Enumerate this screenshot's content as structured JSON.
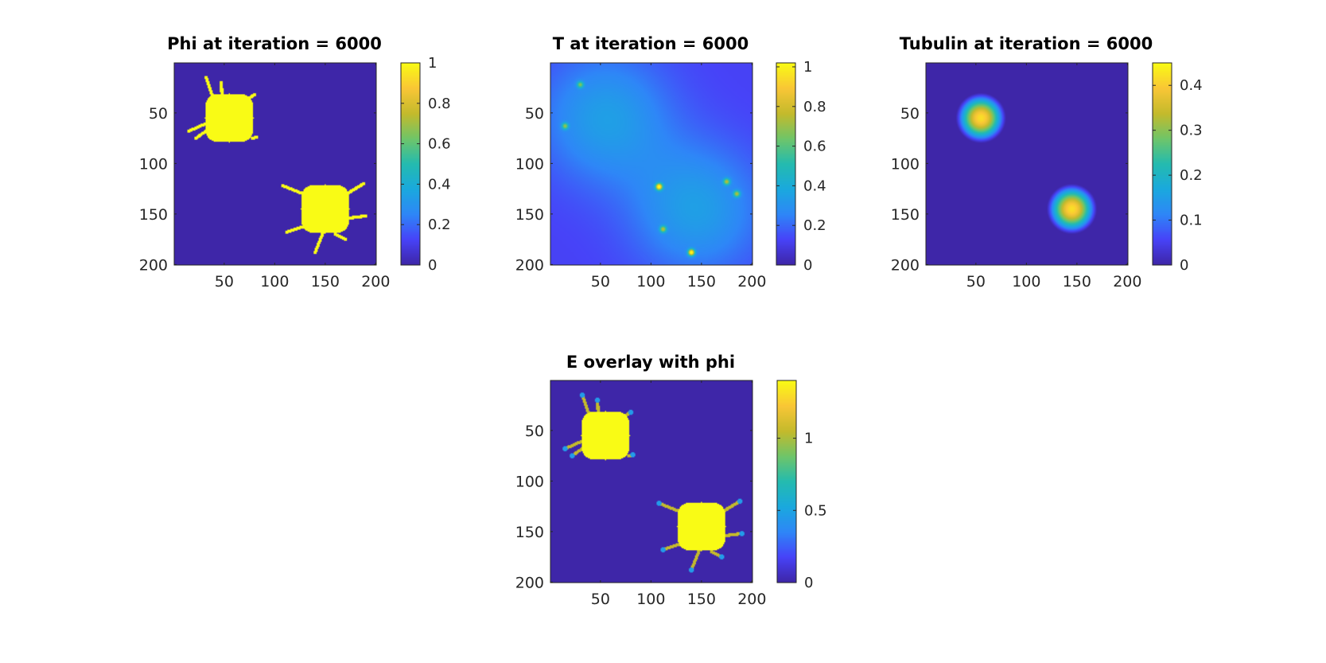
{
  "chart_data": [
    {
      "type": "heatmap",
      "title": "Phi at iteration = 6000",
      "xlim": [
        1,
        200
      ],
      "ylim": [
        1,
        200
      ],
      "y_reversed": true,
      "xticks": [
        50,
        100,
        150,
        200
      ],
      "yticks": [
        50,
        100,
        150,
        200
      ],
      "clim": [
        0,
        1
      ],
      "cbar_ticks": [
        0,
        0.2,
        0.4,
        0.6,
        0.8,
        1
      ],
      "cbar_tick_labels": [
        "0",
        "0.2",
        "0.4",
        "0.6",
        "0.8",
        "1"
      ],
      "field": {
        "background": 0,
        "blobs": [
          {
            "cx": 55,
            "cy": 55,
            "r": 24,
            "value": 1
          },
          {
            "cx": 150,
            "cy": 145,
            "r": 24,
            "value": 1
          }
        ],
        "filaments": [
          {
            "from": [
              40,
              38
            ],
            "to": [
              32,
              15
            ],
            "value": 1
          },
          {
            "from": [
              48,
              35
            ],
            "to": [
              47,
              20
            ],
            "value": 1
          },
          {
            "from": [
              70,
              38
            ],
            "to": [
              80,
              32
            ],
            "value": 1
          },
          {
            "from": [
              33,
              60
            ],
            "to": [
              15,
              68
            ],
            "value": 1
          },
          {
            "from": [
              36,
              65
            ],
            "to": [
              22,
              75
            ],
            "value": 1
          },
          {
            "from": [
              78,
              75
            ],
            "to": [
              82,
              74
            ],
            "value": 1
          },
          {
            "from": [
              128,
              130
            ],
            "to": [
              108,
              122
            ],
            "value": 1
          },
          {
            "from": [
              135,
              160
            ],
            "to": [
              112,
              168
            ],
            "value": 1
          },
          {
            "from": [
              148,
              168
            ],
            "to": [
              140,
              188
            ],
            "value": 1
          },
          {
            "from": [
              168,
              132
            ],
            "to": [
              188,
              120
            ],
            "value": 1
          },
          {
            "from": [
              165,
              155
            ],
            "to": [
              190,
              152
            ],
            "value": 1
          },
          {
            "from": [
              160,
              170
            ],
            "to": [
              170,
              175
            ],
            "value": 1
          }
        ]
      }
    },
    {
      "type": "heatmap",
      "title": "T at iteration = 6000",
      "xlim": [
        1,
        200
      ],
      "ylim": [
        1,
        200
      ],
      "y_reversed": true,
      "xticks": [
        50,
        100,
        150,
        200
      ],
      "yticks": [
        50,
        100,
        150,
        200
      ],
      "clim": [
        0,
        1.02
      ],
      "cbar_ticks": [
        0,
        0.2,
        0.4,
        0.6,
        0.8,
        1
      ],
      "cbar_tick_labels": [
        "0",
        "0.2",
        "0.4",
        "0.6",
        "0.8",
        "1"
      ],
      "field": {
        "background": 0.12,
        "diffuse": [
          {
            "cx": 55,
            "cy": 55,
            "sigma": 45,
            "value": 0.22
          },
          {
            "cx": 145,
            "cy": 145,
            "sigma": 45,
            "value": 0.22
          }
        ],
        "spots": [
          {
            "x": 30,
            "y": 22,
            "value": 0.42
          },
          {
            "x": 15,
            "y": 63,
            "value": 0.45
          },
          {
            "x": 108,
            "y": 123,
            "value": 0.85
          },
          {
            "x": 112,
            "y": 165,
            "value": 0.5
          },
          {
            "x": 140,
            "y": 188,
            "value": 0.85
          },
          {
            "x": 175,
            "y": 118,
            "value": 0.5
          },
          {
            "x": 185,
            "y": 130,
            "value": 0.5
          }
        ]
      }
    },
    {
      "type": "heatmap",
      "title": "Tubulin at iteration = 6000",
      "xlim": [
        1,
        200
      ],
      "ylim": [
        1,
        200
      ],
      "y_reversed": true,
      "xticks": [
        50,
        100,
        150,
        200
      ],
      "yticks": [
        50,
        100,
        150,
        200
      ],
      "clim": [
        0,
        0.45
      ],
      "cbar_ticks": [
        0,
        0.1,
        0.2,
        0.3,
        0.4
      ],
      "cbar_tick_labels": [
        "0",
        "0.1",
        "0.2",
        "0.3",
        "0.4"
      ],
      "field": {
        "background": 0,
        "peaks": [
          {
            "cx": 55,
            "cy": 55,
            "r": 25,
            "value": 0.42
          },
          {
            "cx": 145,
            "cy": 145,
            "r": 25,
            "value": 0.42
          }
        ]
      }
    },
    {
      "type": "heatmap",
      "title": "E overlay with phi",
      "xlim": [
        1,
        200
      ],
      "ylim": [
        1,
        200
      ],
      "y_reversed": true,
      "xticks": [
        50,
        100,
        150,
        200
      ],
      "yticks": [
        50,
        100,
        150,
        200
      ],
      "clim": [
        0,
        1.4
      ],
      "cbar_ticks": [
        0,
        0.5,
        1
      ],
      "cbar_tick_labels": [
        "0",
        "0.5",
        "1"
      ],
      "field": {
        "background": 0,
        "blobs": [
          {
            "cx": 55,
            "cy": 55,
            "r": 24,
            "value": 1.4
          },
          {
            "cx": 150,
            "cy": 145,
            "r": 24,
            "value": 1.4
          }
        ],
        "filament_value": 1.05,
        "tip_value": 0.45,
        "filaments": [
          {
            "from": [
              40,
              38
            ],
            "to": [
              32,
              15
            ]
          },
          {
            "from": [
              48,
              35
            ],
            "to": [
              47,
              20
            ]
          },
          {
            "from": [
              70,
              38
            ],
            "to": [
              80,
              32
            ]
          },
          {
            "from": [
              33,
              60
            ],
            "to": [
              15,
              68
            ]
          },
          {
            "from": [
              36,
              65
            ],
            "to": [
              22,
              75
            ]
          },
          {
            "from": [
              78,
              75
            ],
            "to": [
              82,
              74
            ]
          },
          {
            "from": [
              128,
              130
            ],
            "to": [
              108,
              122
            ]
          },
          {
            "from": [
              135,
              160
            ],
            "to": [
              112,
              168
            ]
          },
          {
            "from": [
              148,
              168
            ],
            "to": [
              140,
              188
            ]
          },
          {
            "from": [
              168,
              132
            ],
            "to": [
              188,
              120
            ]
          },
          {
            "from": [
              165,
              155
            ],
            "to": [
              190,
              152
            ]
          },
          {
            "from": [
              160,
              170
            ],
            "to": [
              170,
              175
            ]
          }
        ]
      }
    }
  ],
  "colors": {
    "parula": [
      "#3e26a8",
      "#4743f8",
      "#2e87f7",
      "#1aa9de",
      "#24bbaf",
      "#6fc569",
      "#c4ba2c",
      "#f9c636",
      "#f9fb15"
    ],
    "axis": "#262626"
  }
}
